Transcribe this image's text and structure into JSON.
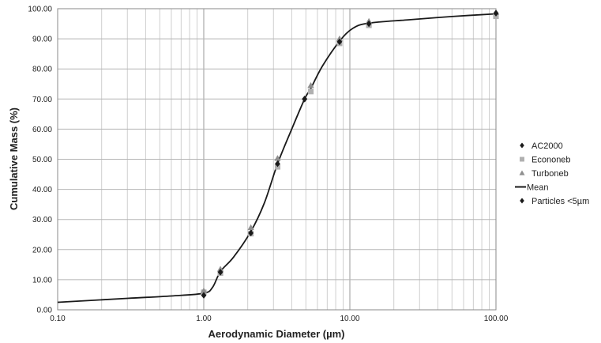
{
  "chart_data": {
    "type": "scatter",
    "xlabel": "Aerodynamic Diameter (µm)",
    "ylabel": "Cumulative Mass (%)",
    "xscale": "log",
    "xlim": [
      0.1,
      100
    ],
    "ylim": [
      0,
      100
    ],
    "grid": true,
    "legend_position": "right",
    "x_tick_labels": [
      "0.10",
      "1.00",
      "10.00",
      "100.00"
    ],
    "y_tick_labels": [
      "0.00",
      "10.00",
      "20.00",
      "30.00",
      "40.00",
      "50.00",
      "60.00",
      "70.00",
      "80.00",
      "90.00",
      "100.00"
    ],
    "series": [
      {
        "name": "AC2000",
        "marker": "diamond",
        "color": "#1a1a1a",
        "points": [
          [
            1.0,
            4.8
          ],
          [
            1.3,
            12.5
          ],
          [
            2.1,
            25.5
          ],
          [
            3.2,
            48.5
          ],
          [
            4.9,
            70.0
          ],
          [
            8.5,
            89.0
          ],
          [
            13.5,
            95.0
          ],
          [
            100,
            98.5
          ]
        ]
      },
      {
        "name": "Econoneb",
        "marker": "square",
        "color": "#b0b0b0",
        "points": [
          [
            1.0,
            5.8
          ],
          [
            1.3,
            12.2
          ],
          [
            2.1,
            25.3
          ],
          [
            3.2,
            47.5
          ],
          [
            5.4,
            72.5
          ],
          [
            8.5,
            88.5
          ],
          [
            13.5,
            94.5
          ],
          [
            100,
            97.5
          ]
        ]
      },
      {
        "name": "Turboneb",
        "marker": "triangle",
        "color": "#8f8f8f",
        "points": [
          [
            1.0,
            6.3
          ],
          [
            1.3,
            13.5
          ],
          [
            2.1,
            27.3
          ],
          [
            3.2,
            50.3
          ],
          [
            5.4,
            74.5
          ],
          [
            8.5,
            90.0
          ],
          [
            13.5,
            95.8
          ],
          [
            100,
            98.8
          ]
        ]
      },
      {
        "name": "Mean",
        "marker": "line",
        "color": "#1a1a1a",
        "points": [
          [
            0.1,
            2.5
          ],
          [
            0.3,
            3.8
          ],
          [
            0.6,
            4.6
          ],
          [
            1.0,
            5.5
          ],
          [
            1.15,
            7.5
          ],
          [
            1.3,
            12.7
          ],
          [
            1.6,
            17.5
          ],
          [
            2.1,
            26.0
          ],
          [
            2.6,
            35.5
          ],
          [
            3.2,
            48.5
          ],
          [
            4.0,
            60.0
          ],
          [
            4.9,
            70.0
          ],
          [
            5.4,
            73.5
          ],
          [
            6.5,
            81.0
          ],
          [
            8.5,
            89.2
          ],
          [
            10.5,
            93.5
          ],
          [
            13.5,
            95.2
          ],
          [
            25,
            96.3
          ],
          [
            50,
            97.4
          ],
          [
            100,
            98.3
          ]
        ]
      },
      {
        "name": "Particles <5µm",
        "marker": "diamond",
        "color": "#1a1a1a",
        "points": [
          [
            4.9,
            70.0
          ]
        ]
      }
    ]
  }
}
